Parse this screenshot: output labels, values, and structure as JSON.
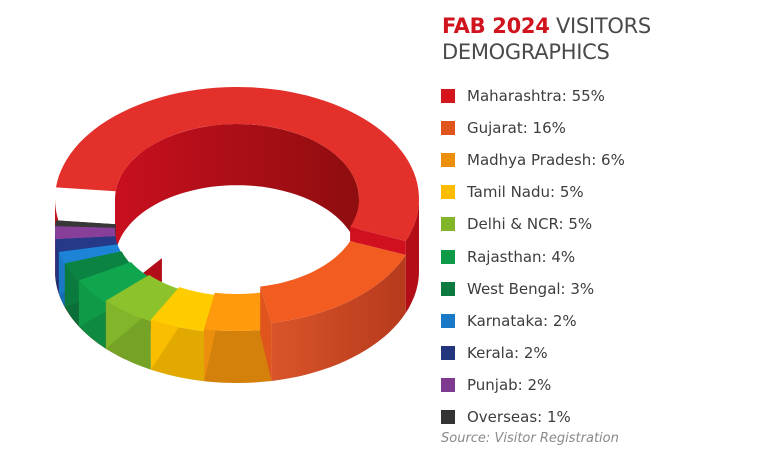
{
  "header": {
    "title_accent": "FAB 2024",
    "title_rest": " VISITORS",
    "title_line2": "DEMOGRAPHICS"
  },
  "legend": [
    {
      "label": "Maharashtra: 55%",
      "color": "#d6141d"
    },
    {
      "label": "Gujarat: 16%",
      "color": "#e0551e"
    },
    {
      "label": "Madhya Pradesh: 6%",
      "color": "#ec8f0c"
    },
    {
      "label": "Tamil Nadu: 5%",
      "color": "#fbbd00"
    },
    {
      "label": "Delhi & NCR: 5%",
      "color": "#82b52a"
    },
    {
      "label": "Rajasthan: 4%",
      "color": "#0f9a48"
    },
    {
      "label": "West Bengal: 3%",
      "color": "#0a7a3e"
    },
    {
      "label": "Karnataka: 2%",
      "color": "#1a79c6"
    },
    {
      "label": "Kerala: 2%",
      "color": "#23357f"
    },
    {
      "label": "Punjab: 2%",
      "color": "#7d3a8f"
    },
    {
      "label": "Overseas: 1%",
      "color": "#333333"
    }
  ],
  "footer": {
    "source": "Source: Visitor Registration"
  },
  "chart_data": {
    "type": "pie",
    "style": "3d-donut",
    "title": "FAB 2024 VISITORS DEMOGRAPHICS",
    "categories": [
      "Maharashtra",
      "Gujarat",
      "Madhya Pradesh",
      "Tamil Nadu",
      "Delhi & NCR",
      "Rajasthan",
      "West Bengal",
      "Karnataka",
      "Kerala",
      "Punjab",
      "Overseas"
    ],
    "values": [
      55,
      16,
      6,
      5,
      5,
      4,
      3,
      2,
      2,
      2,
      1
    ],
    "unit": "%",
    "colors": [
      "#d6141d",
      "#e0551e",
      "#ec8f0c",
      "#fbbd00",
      "#82b52a",
      "#0f9a48",
      "#0a7a3e",
      "#1a79c6",
      "#23357f",
      "#7d3a8f",
      "#333333"
    ],
    "legend_position": "right",
    "source": "Source: Visitor Registration",
    "exploded_slices": [
      "Maharashtra"
    ],
    "lowered_slices": [
      "Gujarat",
      "Madhya Pradesh",
      "Tamil Nadu",
      "Delhi & NCR",
      "Rajasthan",
      "West Bengal",
      "Karnataka",
      "Kerala",
      "Punjab",
      "Overseas"
    ]
  }
}
